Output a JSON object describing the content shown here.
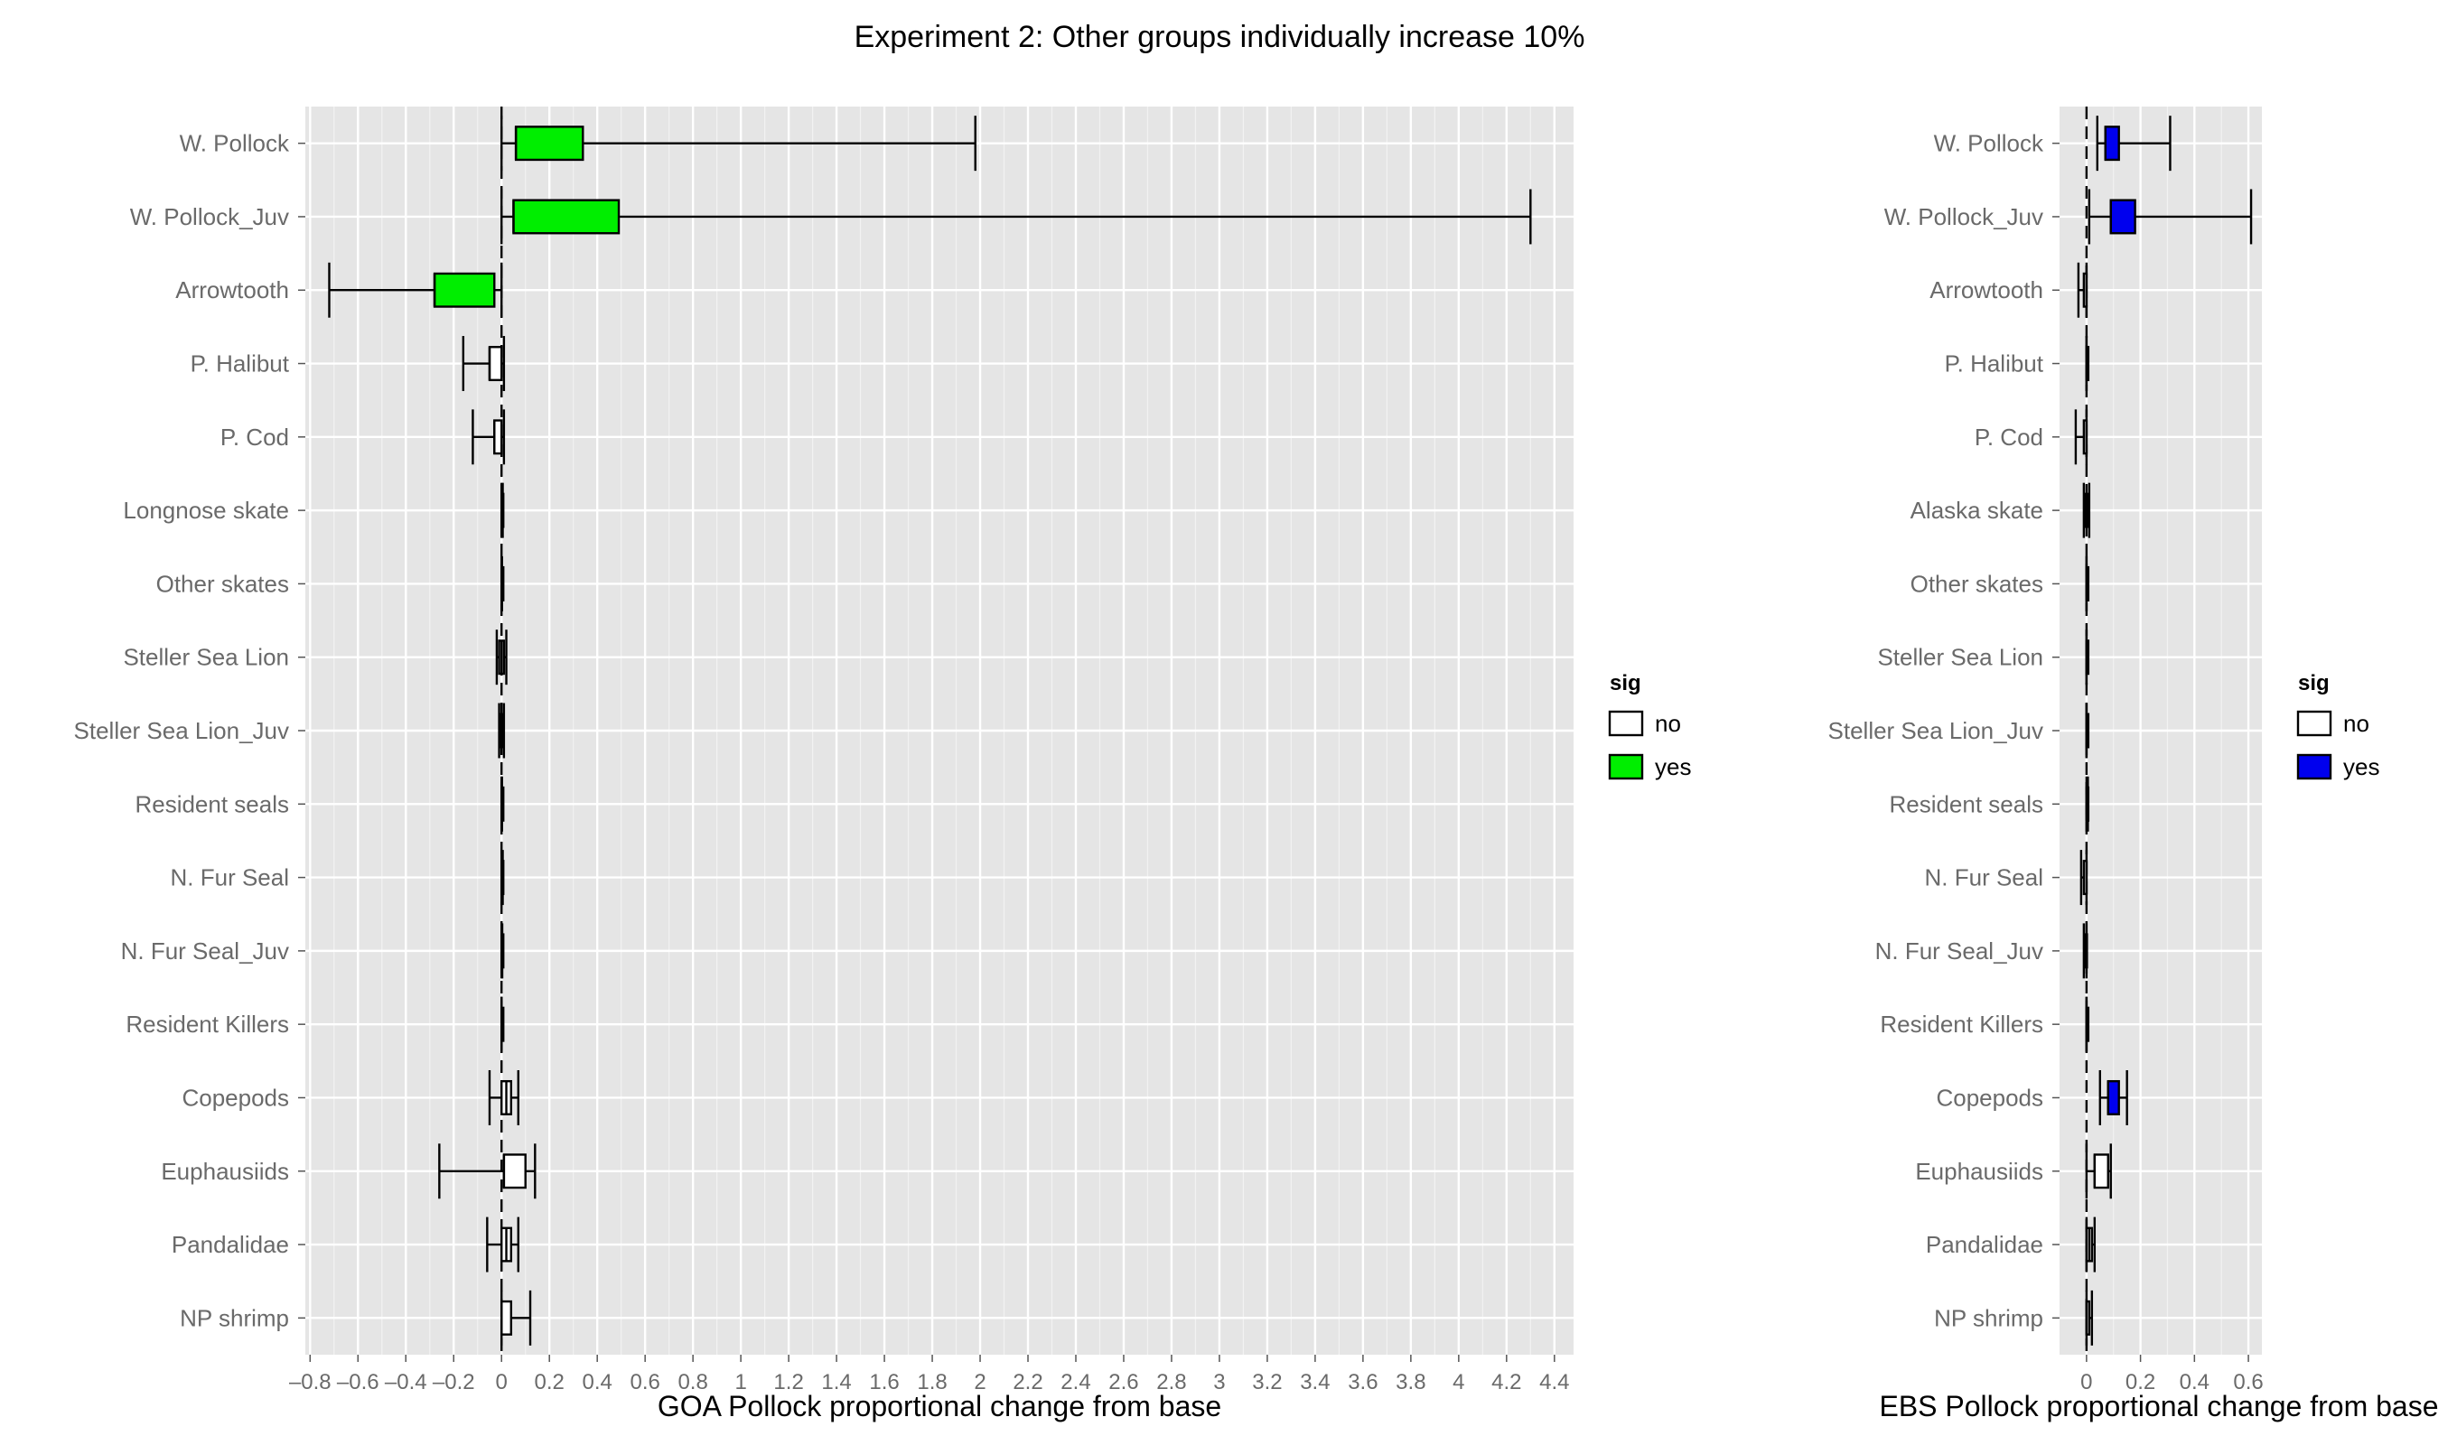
{
  "title": "Experiment 2: Other groups individually increase 10%",
  "chart_data": [
    {
      "type": "boxplot",
      "xlabel": "GOA Pollock proportional change from base",
      "xlim": [
        -0.82,
        4.48
      ],
      "xticks": [
        -0.8,
        -0.6,
        -0.4,
        -0.2,
        0,
        0.2,
        0.4,
        0.6,
        0.8,
        1,
        1.2,
        1.4,
        1.6,
        1.8,
        2,
        2.2,
        2.4,
        2.6,
        2.8,
        3,
        3.2,
        3.4,
        3.6,
        3.8,
        4,
        4.2,
        4.4
      ],
      "xtick_labels": [
        "-0.8",
        "-0.6",
        "-0.4",
        "-0.2",
        "0",
        "0.2",
        "0.4",
        "0.6",
        "0.8",
        "1",
        "1.2",
        "1.4",
        "1.6",
        "1.8",
        "2",
        "2.2",
        "2.4",
        "2.6",
        "2.8",
        "3",
        "3.2",
        "3.4",
        "3.6",
        "3.8",
        "4",
        "4.2",
        "4.4"
      ],
      "grid": true,
      "legend": {
        "title": "sig",
        "position": "right",
        "entries": [
          "no",
          "yes"
        ],
        "yes_color": "#00ee00",
        "no_color": "#ffffff"
      },
      "categories": [
        "W. Pollock",
        "W. Pollock_Juv",
        "Arrowtooth",
        "P. Halibut",
        "P. Cod",
        "Longnose skate",
        "Other skates",
        "Steller Sea Lion",
        "Steller Sea Lion_Juv",
        "Resident seals",
        "N. Fur Seal",
        "N. Fur Seal_Juv",
        "Resident Killers",
        "Copepods",
        "Euphausiids",
        "Pandalidae",
        "NP shrimp"
      ],
      "boxes": [
        {
          "min": 0.0,
          "q1": 0.06,
          "median": 0.06,
          "q3": 0.34,
          "max": 1.98,
          "sig": "yes"
        },
        {
          "min": 0.0,
          "q1": 0.05,
          "median": 0.05,
          "q3": 0.49,
          "max": 4.3,
          "sig": "yes"
        },
        {
          "min": -0.72,
          "q1": -0.28,
          "median": -0.28,
          "q3": -0.03,
          "max": 0.0,
          "sig": "yes"
        },
        {
          "min": -0.16,
          "q1": -0.05,
          "median": -0.05,
          "q3": 0.0,
          "max": 0.01,
          "sig": "no"
        },
        {
          "min": -0.12,
          "q1": -0.03,
          "median": -0.03,
          "q3": 0.0,
          "max": 0.01,
          "sig": "no"
        },
        {
          "min": 0.0,
          "q1": 0.0,
          "median": 0.0,
          "q3": 0.0,
          "max": 0.005,
          "sig": "no"
        },
        {
          "min": 0.0,
          "q1": 0.0,
          "median": 0.0,
          "q3": 0.0,
          "max": 0.002,
          "sig": "no"
        },
        {
          "min": -0.02,
          "q1": -0.01,
          "median": 0.0,
          "q3": 0.01,
          "max": 0.02,
          "sig": "no"
        },
        {
          "min": -0.01,
          "q1": -0.005,
          "median": 0.0,
          "q3": 0.005,
          "max": 0.01,
          "sig": "no"
        },
        {
          "min": 0.0,
          "q1": 0.0,
          "median": 0.0,
          "q3": 0.0,
          "max": 0.002,
          "sig": "no"
        },
        {
          "min": 0.0,
          "q1": 0.0,
          "median": 0.0,
          "q3": 0.0,
          "max": 0.005,
          "sig": "no"
        },
        {
          "min": 0.0,
          "q1": 0.0,
          "median": 0.0,
          "q3": 0.0,
          "max": 0.003,
          "sig": "no"
        },
        {
          "min": 0.0,
          "q1": 0.0,
          "median": 0.0,
          "q3": 0.0,
          "max": 0.0,
          "sig": "no"
        },
        {
          "min": -0.05,
          "q1": 0.0,
          "median": 0.02,
          "q3": 0.04,
          "max": 0.07,
          "sig": "no"
        },
        {
          "min": -0.26,
          "q1": 0.01,
          "median": 0.01,
          "q3": 0.1,
          "max": 0.14,
          "sig": "no"
        },
        {
          "min": -0.06,
          "q1": 0.0,
          "median": 0.02,
          "q3": 0.04,
          "max": 0.07,
          "sig": "no"
        },
        {
          "min": 0.0,
          "q1": 0.0,
          "median": 0.0,
          "q3": 0.04,
          "max": 0.12,
          "sig": "no"
        }
      ]
    },
    {
      "type": "boxplot",
      "xlabel": "EBS Pollock proportional change from base",
      "xlim": [
        -0.1,
        0.65
      ],
      "xticks": [
        0,
        0.2,
        0.4,
        0.6
      ],
      "xtick_labels": [
        "0",
        "0.2",
        "0.4",
        "0.6"
      ],
      "grid": true,
      "legend": {
        "title": "sig",
        "position": "right",
        "entries": [
          "no",
          "yes"
        ],
        "yes_color": "#0000ee",
        "no_color": "#ffffff"
      },
      "categories": [
        "W. Pollock",
        "W. Pollock_Juv",
        "Arrowtooth",
        "P. Halibut",
        "P. Cod",
        "Alaska skate",
        "Other skates",
        "Steller Sea Lion",
        "Steller Sea Lion_Juv",
        "Resident seals",
        "N. Fur Seal",
        "N. Fur Seal_Juv",
        "Resident Killers",
        "Copepods",
        "Euphausiids",
        "Pandalidae",
        "NP shrimp"
      ],
      "boxes": [
        {
          "min": 0.04,
          "q1": 0.07,
          "median": 0.07,
          "q3": 0.12,
          "max": 0.31,
          "sig": "yes"
        },
        {
          "min": 0.01,
          "q1": 0.09,
          "median": 0.09,
          "q3": 0.18,
          "max": 0.61,
          "sig": "yes"
        },
        {
          "min": -0.03,
          "q1": -0.01,
          "median": 0.0,
          "q3": 0.0,
          "max": 0.0,
          "sig": "no"
        },
        {
          "min": 0.0,
          "q1": 0.0,
          "median": 0.0,
          "q3": 0.0,
          "max": 0.0,
          "sig": "no"
        },
        {
          "min": -0.04,
          "q1": -0.01,
          "median": 0.0,
          "q3": 0.0,
          "max": 0.0,
          "sig": "no"
        },
        {
          "min": -0.01,
          "q1": -0.005,
          "median": 0.0,
          "q3": 0.005,
          "max": 0.01,
          "sig": "no"
        },
        {
          "min": 0.0,
          "q1": 0.0,
          "median": 0.0,
          "q3": 0.0,
          "max": 0.0,
          "sig": "no"
        },
        {
          "min": 0.0,
          "q1": 0.0,
          "median": 0.0,
          "q3": 0.0,
          "max": 0.0,
          "sig": "no"
        },
        {
          "min": 0.0,
          "q1": 0.0,
          "median": 0.0,
          "q3": 0.0,
          "max": 0.0,
          "sig": "no"
        },
        {
          "min": 0.0,
          "q1": 0.0,
          "median": 0.0,
          "q3": 0.0,
          "max": 0.005,
          "sig": "no"
        },
        {
          "min": -0.02,
          "q1": -0.01,
          "median": 0.0,
          "q3": 0.0,
          "max": 0.0,
          "sig": "no"
        },
        {
          "min": -0.01,
          "q1": -0.005,
          "median": 0.0,
          "q3": 0.0,
          "max": 0.0,
          "sig": "no"
        },
        {
          "min": 0.0,
          "q1": 0.0,
          "median": 0.0,
          "q3": 0.0,
          "max": 0.0,
          "sig": "no"
        },
        {
          "min": 0.05,
          "q1": 0.08,
          "median": 0.08,
          "q3": 0.12,
          "max": 0.15,
          "sig": "yes"
        },
        {
          "min": 0.0,
          "q1": 0.03,
          "median": 0.03,
          "q3": 0.08,
          "max": 0.09,
          "sig": "no"
        },
        {
          "min": 0.0,
          "q1": 0.0,
          "median": 0.01,
          "q3": 0.02,
          "max": 0.03,
          "sig": "no"
        },
        {
          "min": 0.0,
          "q1": 0.0,
          "median": 0.0,
          "q3": 0.01,
          "max": 0.02,
          "sig": "no"
        }
      ]
    }
  ]
}
